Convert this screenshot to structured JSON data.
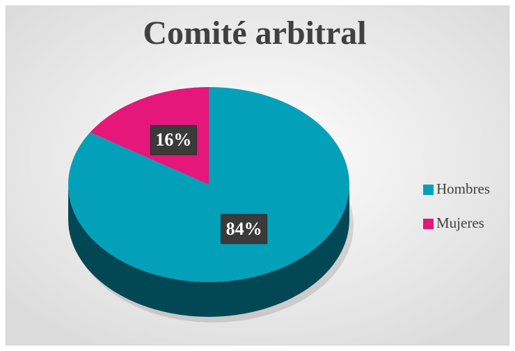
{
  "chart_data": {
    "type": "pie",
    "title": "Comité arbitral",
    "categories": [
      "Hombres",
      "Mujeres"
    ],
    "values": [
      84,
      16
    ],
    "value_labels": [
      "84%",
      "16%"
    ],
    "colors": [
      "#03a0ba",
      "#e5177a"
    ],
    "legend": "right"
  }
}
